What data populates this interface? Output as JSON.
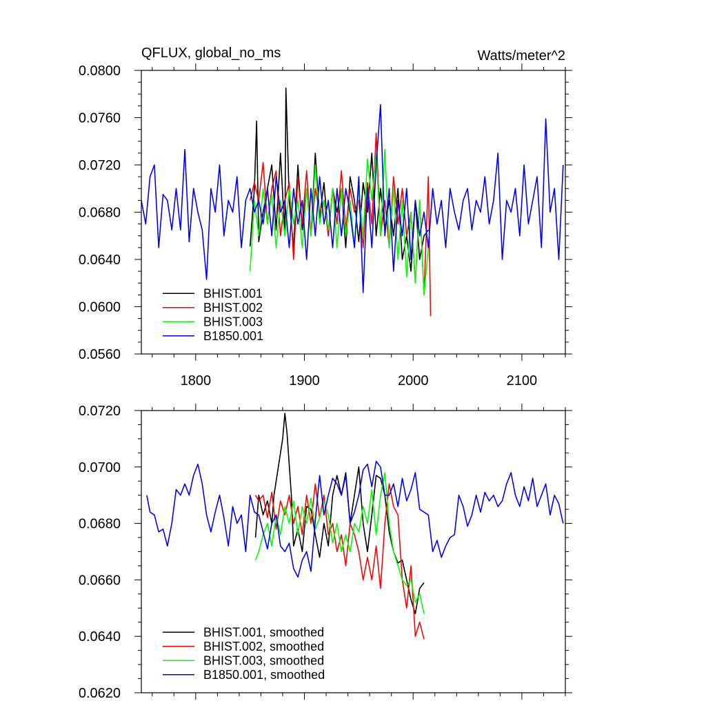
{
  "page": {
    "title_left": "QFLUX, global_no_ms",
    "title_right": "Watts/meter^2"
  },
  "chart_data": [
    {
      "type": "line",
      "panel": "top",
      "title": "QFLUX, global_no_ms",
      "units": "Watts/meter^2",
      "xlim": [
        1750,
        2140
      ],
      "ylim": [
        0.056,
        0.08
      ],
      "xticks": [
        1800,
        1900,
        2000,
        2100
      ],
      "xtick_labels": [
        "1800",
        "1900",
        "2000",
        "2100"
      ],
      "yticks": [
        0.056,
        0.06,
        0.064,
        0.068,
        0.072,
        0.076,
        0.08
      ],
      "ytick_labels": [
        "0.0560",
        "0.0600",
        "0.0640",
        "0.0680",
        "0.0720",
        "0.0760",
        "0.0800"
      ],
      "legend": "bottom-left",
      "series": [
        {
          "name": "BHIST.001",
          "color": "#000000",
          "x": [
            1850,
            1854,
            1856,
            1858,
            1862,
            1866,
            1870,
            1874,
            1878,
            1882,
            1883,
            1886,
            1890,
            1894,
            1898,
            1902,
            1906,
            1910,
            1914,
            1918,
            1922,
            1926,
            1930,
            1934,
            1938,
            1942,
            1946,
            1950,
            1954,
            1958,
            1962,
            1966,
            1970,
            1974,
            1978,
            1982,
            1986,
            1990,
            1994,
            1998,
            2002,
            2006,
            2010,
            2014
          ],
          "y": [
            0.0651,
            0.07,
            0.0757,
            0.0655,
            0.068,
            0.07,
            0.072,
            0.0665,
            0.073,
            0.066,
            0.0785,
            0.069,
            0.065,
            0.072,
            0.0665,
            0.07,
            0.066,
            0.073,
            0.0675,
            0.0705,
            0.066,
            0.07,
            0.068,
            0.07,
            0.065,
            0.071,
            0.069,
            0.0655,
            0.0705,
            0.068,
            0.073,
            0.066,
            0.07,
            0.0665,
            0.069,
            0.066,
            0.07,
            0.064,
            0.066,
            0.063,
            0.069,
            0.064,
            0.066,
            0.0665
          ]
        },
        {
          "name": "BHIST.002",
          "color": "#ff0000",
          "x": [
            1850,
            1854,
            1858,
            1862,
            1866,
            1870,
            1874,
            1878,
            1882,
            1886,
            1890,
            1894,
            1898,
            1902,
            1906,
            1910,
            1914,
            1918,
            1922,
            1926,
            1930,
            1934,
            1938,
            1942,
            1946,
            1950,
            1954,
            1958,
            1962,
            1966,
            1970,
            1974,
            1978,
            1982,
            1986,
            1990,
            1994,
            1998,
            2002,
            2006,
            2010,
            2014,
            2016
          ],
          "y": [
            0.069,
            0.0705,
            0.069,
            0.0722,
            0.067,
            0.07,
            0.0715,
            0.066,
            0.069,
            0.0705,
            0.064,
            0.071,
            0.067,
            0.0715,
            0.066,
            0.07,
            0.068,
            0.069,
            0.066,
            0.07,
            0.067,
            0.0715,
            0.0665,
            0.07,
            0.068,
            0.069,
            0.065,
            0.0705,
            0.067,
            0.0747,
            0.066,
            0.069,
            0.065,
            0.071,
            0.067,
            0.07,
            0.066,
            0.068,
            0.062,
            0.069,
            0.061,
            0.071,
            0.0592
          ]
        },
        {
          "name": "BHIST.003",
          "color": "#00ff00",
          "x": [
            1850,
            1854,
            1858,
            1862,
            1866,
            1870,
            1874,
            1878,
            1882,
            1886,
            1890,
            1894,
            1898,
            1902,
            1906,
            1910,
            1914,
            1918,
            1922,
            1926,
            1930,
            1934,
            1938,
            1942,
            1946,
            1950,
            1954,
            1958,
            1962,
            1966,
            1970,
            1974,
            1978,
            1982,
            1986,
            1990,
            1994,
            1998,
            2002,
            2006,
            2010,
            2014
          ],
          "y": [
            0.063,
            0.069,
            0.066,
            0.07,
            0.067,
            0.0695,
            0.065,
            0.069,
            0.066,
            0.07,
            0.067,
            0.069,
            0.065,
            0.07,
            0.066,
            0.072,
            0.067,
            0.069,
            0.0665,
            0.07,
            0.065,
            0.07,
            0.066,
            0.069,
            0.065,
            0.07,
            0.066,
            0.0725,
            0.069,
            0.073,
            0.066,
            0.0733,
            0.065,
            0.07,
            0.064,
            0.069,
            0.0625,
            0.068,
            0.062,
            0.069,
            0.061,
            0.065
          ]
        },
        {
          "name": "B1850.001",
          "color": "#0000ff",
          "x": [
            1750,
            1754,
            1758,
            1762,
            1766,
            1770,
            1774,
            1778,
            1782,
            1786,
            1790,
            1794,
            1798,
            1802,
            1806,
            1810,
            1814,
            1818,
            1822,
            1826,
            1830,
            1834,
            1838,
            1842,
            1846,
            1850,
            1854,
            1858,
            1862,
            1866,
            1870,
            1874,
            1878,
            1882,
            1886,
            1890,
            1894,
            1898,
            1902,
            1906,
            1910,
            1914,
            1918,
            1922,
            1926,
            1930,
            1934,
            1938,
            1942,
            1946,
            1950,
            1954,
            1958,
            1962,
            1966,
            1970,
            1974,
            1978,
            1982,
            1986,
            1990,
            1994,
            1998,
            2002,
            2006,
            2010,
            2014,
            2018,
            2022,
            2026,
            2030,
            2034,
            2038,
            2042,
            2046,
            2050,
            2054,
            2058,
            2062,
            2066,
            2070,
            2074,
            2078,
            2082,
            2086,
            2090,
            2094,
            2098,
            2102,
            2106,
            2110,
            2114,
            2118,
            2122,
            2126,
            2130,
            2134,
            2138
          ],
          "y": [
            0.069,
            0.067,
            0.071,
            0.072,
            0.065,
            0.0695,
            0.069,
            0.0665,
            0.07,
            0.0665,
            0.0733,
            0.0655,
            0.07,
            0.068,
            0.0665,
            0.0623,
            0.07,
            0.068,
            0.072,
            0.066,
            0.069,
            0.068,
            0.071,
            0.065,
            0.069,
            0.07,
            0.068,
            0.069,
            0.067,
            0.07,
            0.066,
            0.071,
            0.068,
            0.069,
            0.065,
            0.07,
            0.067,
            0.069,
            0.064,
            0.07,
            0.066,
            0.071,
            0.067,
            0.069,
            0.065,
            0.07,
            0.066,
            0.07,
            0.068,
            0.065,
            0.071,
            0.0612,
            0.07,
            0.065,
            0.072,
            0.0771,
            0.066,
            0.07,
            0.063,
            0.069,
            0.066,
            0.07,
            0.064,
            0.069,
            0.066,
            0.068,
            0.065,
            0.07,
            0.067,
            0.069,
            0.065,
            0.07,
            0.068,
            0.0665,
            0.069,
            0.07,
            0.0665,
            0.069,
            0.068,
            0.071,
            0.067,
            0.069,
            0.073,
            0.064,
            0.069,
            0.068,
            0.07,
            0.066,
            0.072,
            0.067,
            0.069,
            0.071,
            0.065,
            0.0759,
            0.068,
            0.07,
            0.064,
            0.072
          ]
        }
      ]
    },
    {
      "type": "line",
      "panel": "bottom",
      "xlim": [
        1750,
        2140
      ],
      "ylim": [
        0.062,
        0.072
      ],
      "xticks": [
        1800,
        1900,
        2000,
        2100
      ],
      "yticks": [
        0.062,
        0.064,
        0.066,
        0.068,
        0.07,
        0.072
      ],
      "ytick_labels": [
        "0.0620",
        "0.0640",
        "0.0660",
        "0.0680",
        "0.0700",
        "0.0720"
      ],
      "legend": "bottom-left",
      "series": [
        {
          "name": "BHIST.001, smoothed",
          "color": "#000000",
          "x": [
            1855,
            1858,
            1862,
            1866,
            1870,
            1872,
            1876,
            1880,
            1882,
            1884,
            1888,
            1890,
            1894,
            1898,
            1902,
            1906,
            1910,
            1914,
            1918,
            1922,
            1926,
            1930,
            1934,
            1938,
            1942,
            1946,
            1950,
            1954,
            1958,
            1962,
            1966,
            1970,
            1974,
            1978,
            1982,
            1986,
            1990,
            1994,
            1998,
            2002,
            2006,
            2010
          ],
          "y": [
            0.0675,
            0.069,
            0.0683,
            0.0688,
            0.068,
            0.069,
            0.07,
            0.071,
            0.0719,
            0.0712,
            0.069,
            0.0672,
            0.0678,
            0.067,
            0.0686,
            0.0685,
            0.0676,
            0.0668,
            0.068,
            0.0672,
            0.069,
            0.0697,
            0.069,
            0.0698,
            0.068,
            0.069,
            0.07,
            0.068,
            0.067,
            0.0683,
            0.0697,
            0.0696,
            0.069,
            0.0677,
            0.067,
            0.0666,
            0.0667,
            0.066,
            0.0653,
            0.0648,
            0.0657,
            0.0659
          ]
        },
        {
          "name": "BHIST.002, smoothed",
          "color": "#ff0000",
          "x": [
            1855,
            1858,
            1862,
            1866,
            1870,
            1874,
            1878,
            1882,
            1886,
            1890,
            1894,
            1898,
            1902,
            1906,
            1910,
            1914,
            1918,
            1922,
            1926,
            1930,
            1934,
            1938,
            1942,
            1946,
            1950,
            1954,
            1958,
            1962,
            1966,
            1970,
            1974,
            1978,
            1982,
            1986,
            1990,
            1994,
            1998,
            2002,
            2006,
            2010
          ],
          "y": [
            0.069,
            0.0688,
            0.069,
            0.0682,
            0.0691,
            0.0678,
            0.0688,
            0.0683,
            0.069,
            0.068,
            0.0686,
            0.0676,
            0.069,
            0.068,
            0.0694,
            0.0682,
            0.069,
            0.0676,
            0.068,
            0.067,
            0.0676,
            0.0665,
            0.068,
            0.0676,
            0.067,
            0.066,
            0.0668,
            0.066,
            0.0672,
            0.0657,
            0.068,
            0.0694,
            0.0686,
            0.0683,
            0.066,
            0.065,
            0.0665,
            0.064,
            0.0645,
            0.0639
          ]
        },
        {
          "name": "BHIST.003, smoothed",
          "color": "#00ff00",
          "x": [
            1855,
            1858,
            1862,
            1866,
            1870,
            1874,
            1878,
            1882,
            1886,
            1890,
            1894,
            1898,
            1902,
            1906,
            1910,
            1914,
            1918,
            1922,
            1926,
            1930,
            1934,
            1938,
            1942,
            1946,
            1950,
            1954,
            1958,
            1962,
            1966,
            1970,
            1974,
            1978,
            1982,
            1986,
            1990,
            1994,
            1998,
            2002,
            2006,
            2010
          ],
          "y": [
            0.0667,
            0.067,
            0.0676,
            0.068,
            0.0672,
            0.0683,
            0.0676,
            0.0686,
            0.068,
            0.0688,
            0.0676,
            0.0686,
            0.068,
            0.0689,
            0.0678,
            0.0682,
            0.0688,
            0.0683,
            0.0673,
            0.068,
            0.067,
            0.0676,
            0.067,
            0.068,
            0.0677,
            0.0686,
            0.068,
            0.0692,
            0.0676,
            0.069,
            0.0698,
            0.068,
            0.067,
            0.0665,
            0.066,
            0.0658,
            0.066,
            0.0652,
            0.0655,
            0.0648
          ]
        },
        {
          "name": "B1850.001, smoothed",
          "color": "#0000ff",
          "x": [
            1755,
            1758,
            1762,
            1766,
            1770,
            1774,
            1778,
            1782,
            1786,
            1790,
            1794,
            1798,
            1802,
            1806,
            1810,
            1814,
            1818,
            1822,
            1826,
            1830,
            1834,
            1838,
            1842,
            1846,
            1850,
            1854,
            1858,
            1862,
            1866,
            1870,
            1874,
            1878,
            1882,
            1886,
            1890,
            1894,
            1898,
            1902,
            1906,
            1910,
            1914,
            1918,
            1922,
            1926,
            1930,
            1934,
            1938,
            1942,
            1946,
            1950,
            1954,
            1958,
            1962,
            1966,
            1970,
            1974,
            1978,
            1982,
            1986,
            1990,
            1994,
            1998,
            2002,
            2006,
            2010,
            2014,
            2018,
            2022,
            2026,
            2030,
            2034,
            2038,
            2042,
            2046,
            2050,
            2054,
            2058,
            2062,
            2066,
            2070,
            2074,
            2078,
            2082,
            2086,
            2090,
            2094,
            2098,
            2102,
            2106,
            2110,
            2114,
            2118,
            2122,
            2126,
            2130,
            2134,
            2138
          ],
          "y": [
            0.069,
            0.0684,
            0.0683,
            0.0677,
            0.0678,
            0.0672,
            0.068,
            0.0692,
            0.069,
            0.0694,
            0.069,
            0.0697,
            0.0701,
            0.0694,
            0.0683,
            0.0677,
            0.0684,
            0.069,
            0.0682,
            0.0672,
            0.0686,
            0.068,
            0.0683,
            0.067,
            0.069,
            0.0684,
            0.0683,
            0.0677,
            0.0671,
            0.068,
            0.0683,
            0.0672,
            0.067,
            0.0673,
            0.0664,
            0.0661,
            0.0667,
            0.067,
            0.0663,
            0.0681,
            0.0697,
            0.0683,
            0.069,
            0.0696,
            0.0694,
            0.069,
            0.0697,
            0.068,
            0.0684,
            0.069,
            0.0699,
            0.0701,
            0.0693,
            0.0702,
            0.07,
            0.069,
            0.069,
            0.0694,
            0.0686,
            0.0696,
            0.0688,
            0.0692,
            0.0698,
            0.0685,
            0.0684,
            0.0683,
            0.067,
            0.0674,
            0.0668,
            0.0672,
            0.0675,
            0.0676,
            0.069,
            0.0686,
            0.0679,
            0.0683,
            0.069,
            0.0684,
            0.0691,
            0.0688,
            0.069,
            0.0686,
            0.0688,
            0.0694,
            0.0698,
            0.069,
            0.0686,
            0.0693,
            0.0688,
            0.0696,
            0.0686,
            0.069,
            0.0694,
            0.0683,
            0.069,
            0.0687,
            0.068
          ]
        }
      ]
    }
  ]
}
